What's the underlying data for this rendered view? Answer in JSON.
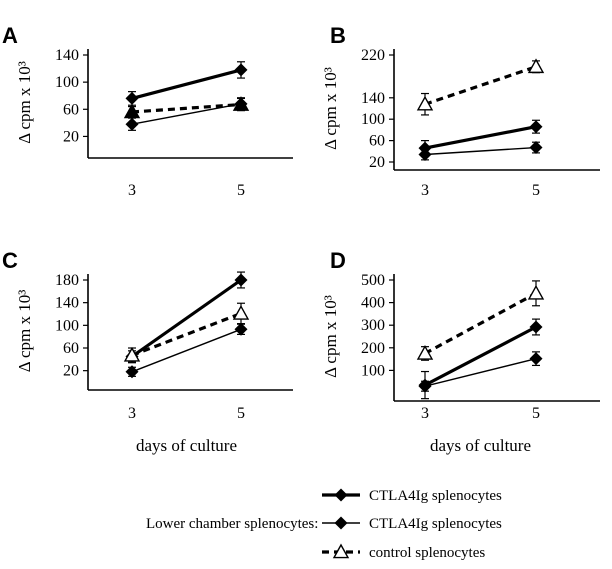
{
  "chart_data": [
    {
      "panel": "A",
      "type": "line",
      "ylabel": "Δ cpm x 10³",
      "xlabel": "",
      "ylim": [
        0,
        140
      ],
      "yticks": [
        "20",
        "60",
        "100",
        "140"
      ],
      "ytick_values": [
        20,
        60,
        100,
        140
      ],
      "categories": [
        "3",
        "5"
      ],
      "series": [
        {
          "style": "thick",
          "marker": "diamond",
          "values": [
            76,
            118
          ],
          "err": [
            10,
            12
          ]
        },
        {
          "style": "thin",
          "marker": "diamond",
          "values": [
            38,
            68
          ],
          "err": [
            9,
            9
          ]
        },
        {
          "style": "dashed",
          "marker": "triangle-filled",
          "values": [
            56,
            67
          ],
          "err": [
            8,
            9
          ]
        }
      ]
    },
    {
      "panel": "B",
      "type": "line",
      "ylabel": "Δ cpm x 10³",
      "xlabel": "",
      "ylim": [
        20,
        220
      ],
      "yticks": [
        "20",
        "60",
        "100",
        "140",
        "220"
      ],
      "ytick_values": [
        20,
        60,
        100,
        140,
        220
      ],
      "categories": [
        "3",
        "5"
      ],
      "series": [
        {
          "style": "thick",
          "marker": "diamond",
          "values": [
            46,
            86
          ],
          "err": [
            14,
            12
          ]
        },
        {
          "style": "thin",
          "marker": "diamond",
          "values": [
            34,
            47
          ],
          "err": [
            10,
            10
          ]
        },
        {
          "style": "dashed",
          "marker": "triangle-open",
          "values": [
            128,
            198
          ],
          "err": [
            20,
            11
          ]
        }
      ]
    },
    {
      "panel": "C",
      "type": "line",
      "ylabel": "Δ cpm x 10³",
      "xlabel": "days of culture",
      "ylim": [
        0,
        180
      ],
      "yticks": [
        "20",
        "60",
        "100",
        "140",
        "180"
      ],
      "ytick_values": [
        20,
        60,
        100,
        140,
        180
      ],
      "categories": [
        "3",
        "5"
      ],
      "series": [
        {
          "style": "thick",
          "marker": "diamond",
          "values": [
            45,
            180
          ],
          "err": [
            10,
            14
          ]
        },
        {
          "style": "thin",
          "marker": "diamond",
          "values": [
            18,
            93
          ],
          "err": [
            8,
            9
          ]
        },
        {
          "style": "dashed",
          "marker": "triangle-open",
          "values": [
            47,
            121
          ],
          "err": [
            13,
            18
          ]
        }
      ]
    },
    {
      "panel": "D",
      "type": "line",
      "ylabel": "Δ cpm x 10³",
      "xlabel": "days of culture",
      "ylim": [
        0,
        500
      ],
      "yticks": [
        "100",
        "200",
        "300",
        "400",
        "500"
      ],
      "ytick_values": [
        100,
        200,
        300,
        400,
        500
      ],
      "categories": [
        "3",
        "5"
      ],
      "series": [
        {
          "style": "thick",
          "marker": "diamond",
          "values": [
            35,
            292
          ],
          "err": [
            60,
            35
          ]
        },
        {
          "style": "thin",
          "marker": "diamond",
          "values": [
            30,
            152
          ],
          "err": [
            22,
            30
          ]
        },
        {
          "style": "dashed",
          "marker": "triangle-open",
          "values": [
            175,
            441
          ],
          "err": [
            30,
            55
          ]
        }
      ]
    }
  ],
  "legend": {
    "group_label": "Lower chamber splenocytes:",
    "entries": [
      {
        "style": "thick",
        "marker": "diamond",
        "label": "CTLA4Ig splenocytes"
      },
      {
        "style": "thin",
        "marker": "diamond",
        "label": "CTLA4Ig  splenocytes"
      },
      {
        "style": "dashed",
        "marker": "triangle-open",
        "label": "control splenocytes"
      }
    ]
  }
}
